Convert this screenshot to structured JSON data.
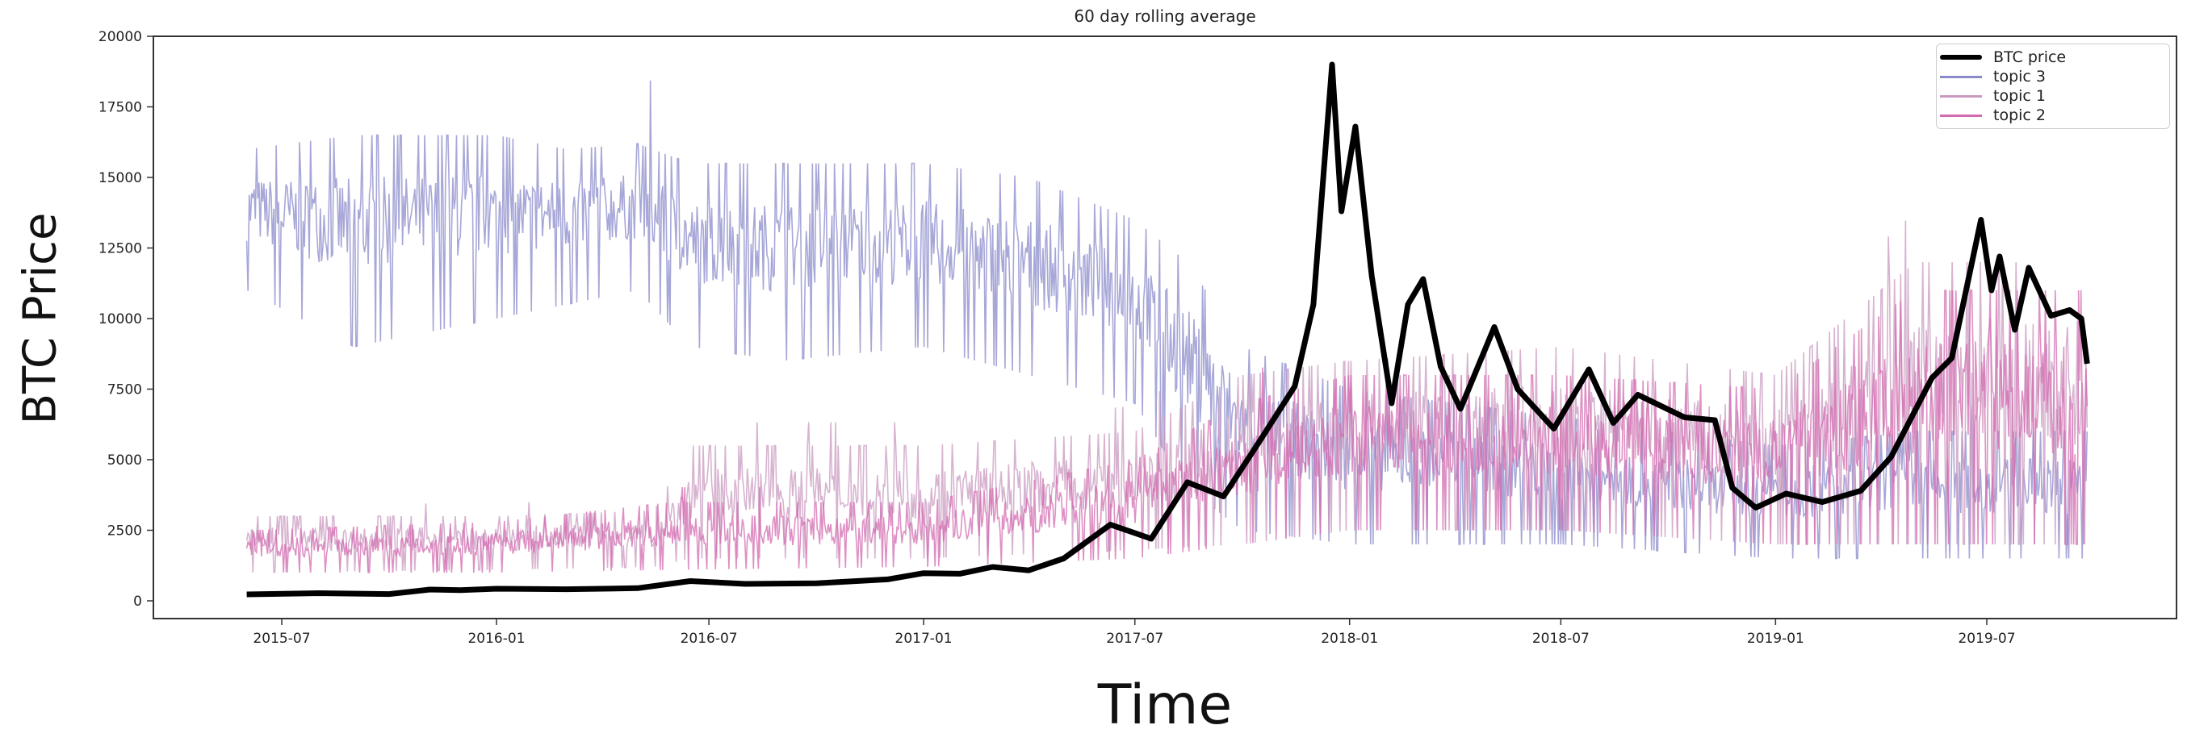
{
  "chart_data": {
    "type": "line",
    "title": "60 day rolling average",
    "xlabel": "Time",
    "ylabel": "BTC Price",
    "ylim": [
      -400,
      20000
    ],
    "xlim": [
      "2015-04-01",
      "2019-11-15"
    ],
    "yticks": [
      0,
      2500,
      5000,
      7500,
      10000,
      12500,
      15000,
      17500,
      20000
    ],
    "xticks": [
      "2015-07",
      "2016-01",
      "2016-07",
      "2017-01",
      "2017-07",
      "2018-01",
      "2018-07",
      "2019-01",
      "2019-07"
    ],
    "grid": false,
    "legend_position": "top-right",
    "legend": [
      "BTC price",
      "topic 3",
      "topic 1",
      "topic 2"
    ],
    "series": [
      {
        "name": "BTC price",
        "color": "#000000",
        "style": "thick-line",
        "points": [
          [
            "2015-06-01",
            230
          ],
          [
            "2015-08-01",
            270
          ],
          [
            "2015-10-01",
            240
          ],
          [
            "2015-11-05",
            400
          ],
          [
            "2015-12-01",
            380
          ],
          [
            "2016-01-01",
            430
          ],
          [
            "2016-03-01",
            410
          ],
          [
            "2016-05-01",
            450
          ],
          [
            "2016-06-15",
            700
          ],
          [
            "2016-08-01",
            600
          ],
          [
            "2016-10-01",
            620
          ],
          [
            "2016-12-01",
            760
          ],
          [
            "2017-01-01",
            980
          ],
          [
            "2017-02-01",
            960
          ],
          [
            "2017-03-01",
            1200
          ],
          [
            "2017-04-01",
            1080
          ],
          [
            "2017-05-01",
            1500
          ],
          [
            "2017-06-10",
            2700
          ],
          [
            "2017-07-15",
            2200
          ],
          [
            "2017-08-15",
            4200
          ],
          [
            "2017-09-15",
            3700
          ],
          [
            "2017-10-15",
            5600
          ],
          [
            "2017-11-15",
            7600
          ],
          [
            "2017-12-01",
            10500
          ],
          [
            "2017-12-17",
            19000
          ],
          [
            "2017-12-25",
            13800
          ],
          [
            "2018-01-06",
            16800
          ],
          [
            "2018-01-20",
            11500
          ],
          [
            "2018-02-06",
            7000
          ],
          [
            "2018-02-20",
            10500
          ],
          [
            "2018-03-05",
            11400
          ],
          [
            "2018-03-20",
            8300
          ],
          [
            "2018-04-06",
            6800
          ],
          [
            "2018-05-05",
            9700
          ],
          [
            "2018-05-25",
            7500
          ],
          [
            "2018-06-25",
            6100
          ],
          [
            "2018-07-25",
            8200
          ],
          [
            "2018-08-15",
            6300
          ],
          [
            "2018-09-05",
            7300
          ],
          [
            "2018-10-15",
            6500
          ],
          [
            "2018-11-10",
            6400
          ],
          [
            "2018-11-25",
            4000
          ],
          [
            "2018-12-15",
            3300
          ],
          [
            "2019-01-10",
            3800
          ],
          [
            "2019-02-10",
            3500
          ],
          [
            "2019-03-15",
            3900
          ],
          [
            "2019-04-10",
            5100
          ],
          [
            "2019-05-15",
            7900
          ],
          [
            "2019-06-01",
            8600
          ],
          [
            "2019-06-26",
            13500
          ],
          [
            "2019-07-05",
            11000
          ],
          [
            "2019-07-12",
            12200
          ],
          [
            "2019-07-25",
            9600
          ],
          [
            "2019-08-06",
            11800
          ],
          [
            "2019-08-25",
            10100
          ],
          [
            "2019-09-10",
            10300
          ],
          [
            "2019-09-20",
            10000
          ],
          [
            "2019-09-25",
            8400
          ]
        ]
      },
      {
        "name": "topic 3",
        "color": "#8a8acb",
        "style": "noisy-band",
        "bands": [
          [
            "2015-06-01",
            11000,
            16000
          ],
          [
            "2015-09-01",
            9000,
            16500
          ],
          [
            "2016-01-01",
            10000,
            16500
          ],
          [
            "2016-03-01",
            10500,
            16000
          ],
          [
            "2016-05-01",
            11000,
            16200
          ],
          [
            "2016-06-15",
            9000,
            15500
          ],
          [
            "2016-09-01",
            8500,
            15500
          ],
          [
            "2017-01-01",
            9000,
            15500
          ],
          [
            "2017-04-01",
            8000,
            15000
          ],
          [
            "2017-07-01",
            7000,
            13500
          ],
          [
            "2017-08-15",
            4000,
            12000
          ],
          [
            "2017-10-01",
            2500,
            9000
          ],
          [
            "2018-01-01",
            2000,
            7500
          ],
          [
            "2018-07-01",
            2000,
            6500
          ],
          [
            "2019-01-01",
            1500,
            5500
          ],
          [
            "2019-05-01",
            1500,
            6000
          ],
          [
            "2019-09-25",
            1500,
            6000
          ]
        ]
      },
      {
        "name": "topic 1",
        "color": "#c99ac0",
        "style": "noisy-band",
        "bands": [
          [
            "2015-06-01",
            1000,
            3000
          ],
          [
            "2016-01-01",
            1100,
            3000
          ],
          [
            "2016-05-15",
            1200,
            3200
          ],
          [
            "2016-06-15",
            1500,
            5500
          ],
          [
            "2017-01-01",
            1500,
            5500
          ],
          [
            "2017-07-01",
            1800,
            6000
          ],
          [
            "2017-10-01",
            2000,
            8000
          ],
          [
            "2018-01-01",
            2500,
            8500
          ],
          [
            "2018-07-01",
            2500,
            9000
          ],
          [
            "2019-01-01",
            2000,
            8000
          ],
          [
            "2019-05-01",
            2000,
            12000
          ],
          [
            "2019-09-25",
            2000,
            12000
          ]
        ]
      },
      {
        "name": "topic 2",
        "color": "#d36bb0",
        "style": "noisy-band",
        "bands": [
          [
            "2015-06-01",
            1000,
            2500
          ],
          [
            "2016-01-01",
            1000,
            2800
          ],
          [
            "2016-06-01",
            1100,
            3500
          ],
          [
            "2017-01-01",
            1200,
            3500
          ],
          [
            "2017-07-01",
            1500,
            5000
          ],
          [
            "2017-10-01",
            2000,
            7000
          ],
          [
            "2018-01-01",
            2500,
            8000
          ],
          [
            "2018-07-01",
            2500,
            8000
          ],
          [
            "2019-01-01",
            2000,
            7500
          ],
          [
            "2019-05-01",
            2000,
            11000
          ],
          [
            "2019-09-25",
            2000,
            11000
          ]
        ]
      }
    ]
  }
}
